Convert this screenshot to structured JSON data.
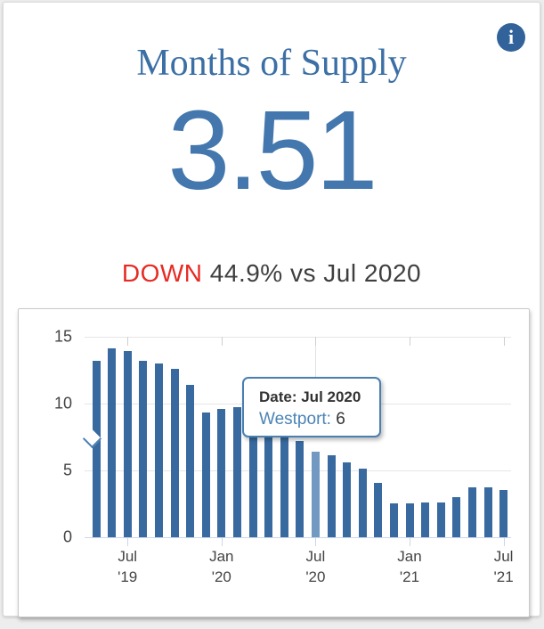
{
  "card": {
    "title": "Months of Supply",
    "value": "3.51",
    "delta": {
      "direction": "DOWN",
      "detail": " 44.9% vs Jul 2020"
    },
    "info_icon_glyph": "i"
  },
  "chart_data": {
    "type": "bar",
    "title": "",
    "xlabel": "",
    "ylabel": "",
    "series_name": "Westport",
    "categories": [
      "May 2019",
      "Jun 2019",
      "Jul 2019",
      "Aug 2019",
      "Sep 2019",
      "Oct 2019",
      "Nov 2019",
      "Dec 2019",
      "Jan 2020",
      "Feb 2020",
      "Mar 2020",
      "Apr 2020",
      "May 2020",
      "Jun 2020",
      "Jul 2020",
      "Aug 2020",
      "Sep 2020",
      "Oct 2020",
      "Nov 2020",
      "Dec 2020",
      "Jan 2021",
      "Feb 2021",
      "Mar 2021",
      "Apr 2021",
      "May 2021",
      "Jun 2021",
      "Jul 2021"
    ],
    "values": [
      13.2,
      14.1,
      13.9,
      13.2,
      13.0,
      12.6,
      11.4,
      9.3,
      9.6,
      9.7,
      9.9,
      9.1,
      8.2,
      7.2,
      6.4,
      6.1,
      5.6,
      5.1,
      4.1,
      2.5,
      2.5,
      2.6,
      2.6,
      3.0,
      3.7,
      3.7,
      3.51
    ],
    "highlight_index": 14,
    "ylim": [
      0,
      15
    ],
    "yticks": [
      0,
      5,
      10,
      15
    ],
    "xticks": [
      {
        "index": 2,
        "line1": "Jul",
        "line2": "'19"
      },
      {
        "index": 8,
        "line1": "Jan",
        "line2": "'20"
      },
      {
        "index": 14,
        "line1": "Jul",
        "line2": "'20"
      },
      {
        "index": 20,
        "line1": "Jan",
        "line2": "'21"
      },
      {
        "index": 26,
        "line1": "Jul",
        "line2": "'21"
      }
    ],
    "grid": true,
    "legend": "none",
    "bar_color": "#386a9f",
    "highlight_color": "#7299c1",
    "tooltip": {
      "line1": "Date: Jul 2020",
      "series_label": "Westport:",
      "series_value": " 6"
    }
  }
}
